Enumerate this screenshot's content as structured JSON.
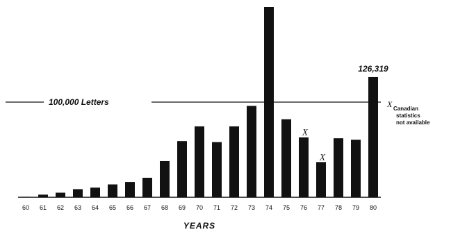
{
  "chart_data": {
    "type": "bar",
    "title": "",
    "xlabel": "YEARS",
    "ylabel": "",
    "categories": [
      "60",
      "61",
      "62",
      "63",
      "64",
      "65",
      "66",
      "67",
      "68",
      "69",
      "70",
      "71",
      "72",
      "73",
      "74",
      "75",
      "76",
      "77",
      "78",
      "79",
      "80"
    ],
    "values": [
      500,
      2800,
      4800,
      8500,
      10200,
      13500,
      16000,
      20500,
      38000,
      59000,
      74500,
      58000,
      74500,
      96000,
      200000,
      82000,
      63000,
      37000,
      62000,
      60500,
      126319
    ],
    "ylim": [
      0,
      200000
    ],
    "bar_color": "#111111",
    "reference_line": {
      "value": 100000,
      "label": "100,000 Letters"
    },
    "data_labels": [
      {
        "category": "80",
        "text": "126,319"
      }
    ],
    "markers": [
      {
        "category": "76",
        "text": "X"
      },
      {
        "category": "77",
        "text": "X"
      }
    ],
    "note": {
      "symbol": "X",
      "lines": [
        "Canadian",
        "statistics",
        "not available"
      ]
    }
  }
}
